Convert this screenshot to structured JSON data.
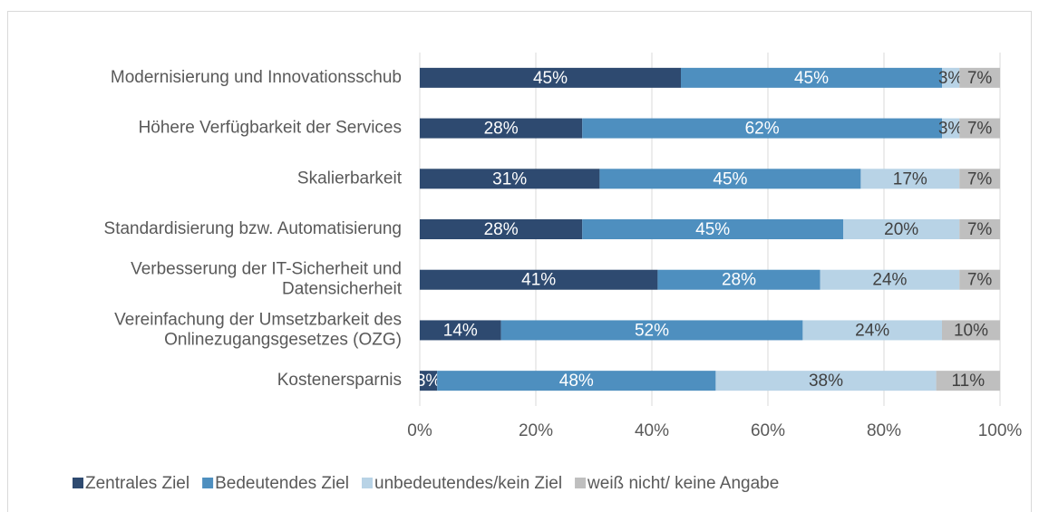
{
  "chart_data": {
    "type": "stacked_bar_horizontal",
    "categories": [
      "Modernisierung und Innovationsschub",
      "Höhere Verfügbarkeit der Services",
      "Skalierbarkeit",
      "Standardisierung bzw. Automatisierung",
      "Verbesserung der IT-Sicherheit und\nDatensicherheit",
      "Vereinfachung der Umsetzbarkeit des\nOnlinezugangsgesetzes (OZG)",
      "Kostenersparnis"
    ],
    "series": [
      {
        "name": "Zentrales Ziel",
        "color": "#2e4a70",
        "values": [
          45,
          28,
          31,
          28,
          41,
          14,
          3
        ],
        "value_labels": [
          "45%",
          "28%",
          "31%",
          "28%",
          "41%",
          "14%",
          "3%"
        ]
      },
      {
        "name": "Bedeutendes Ziel",
        "color": "#4e8fbf",
        "values": [
          45,
          62,
          45,
          45,
          28,
          52,
          48
        ],
        "value_labels": [
          "45%",
          "62%",
          "45%",
          "45%",
          "28%",
          "52%",
          "48%"
        ]
      },
      {
        "name": "unbedeutendes/kein Ziel",
        "color": "#b8d3e6",
        "values": [
          3,
          3,
          17,
          20,
          24,
          24,
          38
        ],
        "value_labels": [
          "3%",
          "3%",
          "17%",
          "20%",
          "24%",
          "24%",
          "38%"
        ]
      },
      {
        "name": "weiß nicht/ keine Angabe",
        "color": "#bfbfbf",
        "values": [
          7,
          7,
          7,
          7,
          7,
          10,
          11
        ],
        "value_labels": [
          "7%",
          "7%",
          "7%",
          "7%",
          "7%",
          "10%",
          "11%"
        ]
      }
    ],
    "xlim": [
      0,
      100
    ],
    "xticks": [
      {
        "value": 0,
        "label": "0%"
      },
      {
        "value": 20,
        "label": "20%"
      },
      {
        "value": 40,
        "label": "40%"
      },
      {
        "value": 60,
        "label": "60%"
      },
      {
        "value": 80,
        "label": "80%"
      },
      {
        "value": 100,
        "label": "100%"
      }
    ],
    "grid": true,
    "legend": "bottom"
  }
}
